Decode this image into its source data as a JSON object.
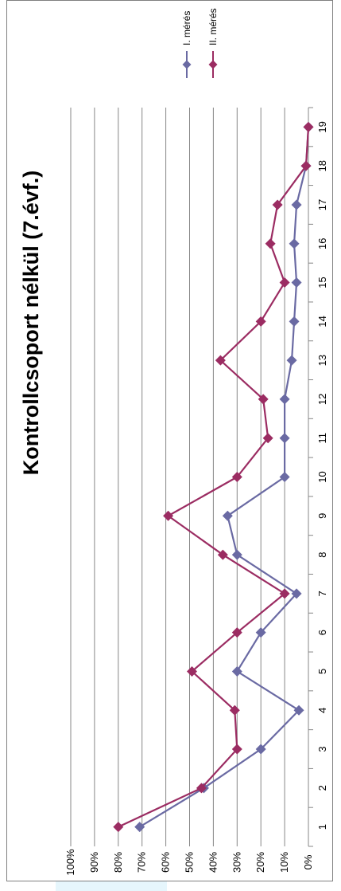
{
  "chart_data": {
    "type": "line",
    "title": "Kontrollcsoport nélkül (7.évf.)",
    "categories": [
      "1",
      "2",
      "3",
      "4",
      "5",
      "6",
      "7",
      "8",
      "9",
      "10",
      "11",
      "12",
      "13",
      "14",
      "15",
      "16",
      "17",
      "18",
      "19"
    ],
    "y_ticks": [
      "0%",
      "10%",
      "20%",
      "30%",
      "40%",
      "50%",
      "60%",
      "70%",
      "80%",
      "90%",
      "100%"
    ],
    "ylim": [
      0,
      100
    ],
    "grid": true,
    "legend_position": "top-right",
    "series": [
      {
        "name": "I. mérés",
        "color": "#6a6aa3",
        "marker": "diamond",
        "values": [
          71,
          44,
          20,
          4,
          30,
          20,
          5,
          30,
          34,
          10,
          10,
          10,
          7,
          6,
          5,
          6,
          5,
          1,
          0
        ]
      },
      {
        "name": "II. mérés",
        "color": "#9b2c62",
        "marker": "diamond",
        "values": [
          80,
          45,
          30,
          31,
          49,
          30,
          10,
          36,
          59,
          30,
          17,
          19,
          37,
          20,
          10,
          16,
          13,
          1,
          0
        ]
      }
    ]
  }
}
